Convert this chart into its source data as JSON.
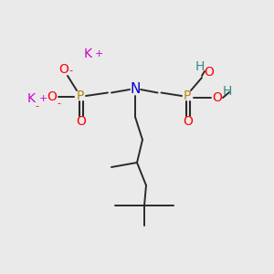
{
  "bg_color": "#eaeaea",
  "bond_color": "#2a2a2a",
  "colors": {
    "K": "#cc00cc",
    "O": "#ff0000",
    "P": "#b8860b",
    "N": "#0000cd",
    "H": "#2e8b8b",
    "C": "#2a2a2a"
  },
  "figsize": [
    3.0,
    3.0
  ],
  "dpi": 100
}
